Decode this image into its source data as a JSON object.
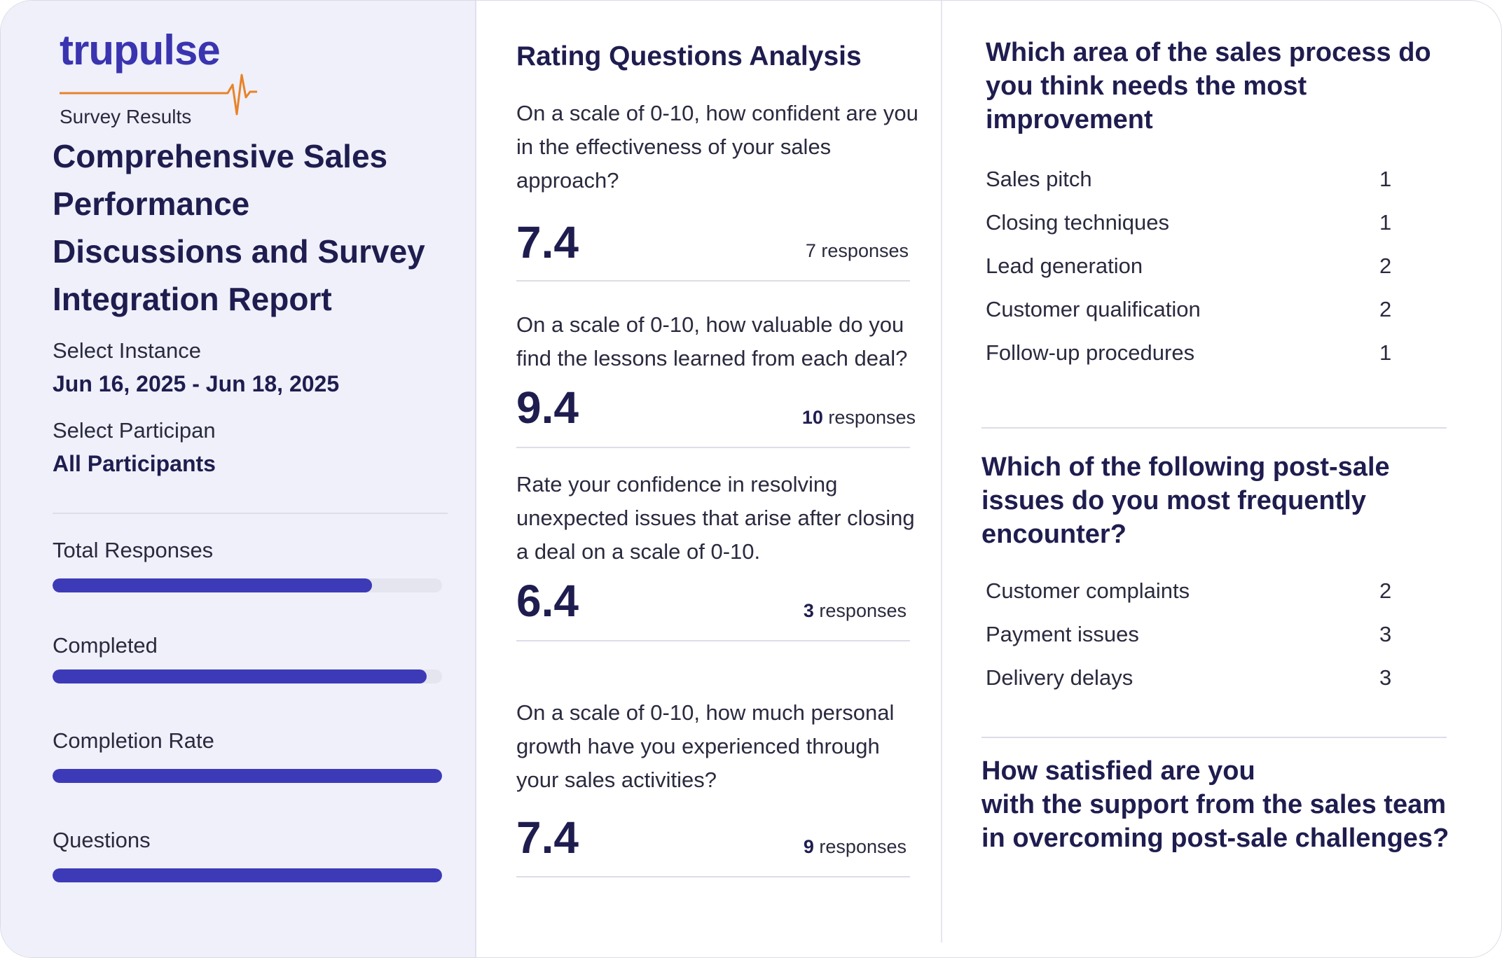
{
  "logo": {
    "text": "trupulse",
    "accent_color": "#e8832a"
  },
  "sidebar": {
    "survey_label": "Survey Results",
    "report_title": "Comprehensive Sales Performance Discussions and Survey Integration Report",
    "instance_label": "Select Instance",
    "instance_value": "Jun 16, 2025 - Jun 18, 2025",
    "participant_label": "Select Participan",
    "participant_value": "All Participants",
    "stats": [
      {
        "label": "Total Responses",
        "progress": 0.82
      },
      {
        "label": "Completed",
        "progress": 0.96
      },
      {
        "label": "Completion Rate",
        "progress": 1.0
      },
      {
        "label": "Questions",
        "progress": 1.0
      }
    ],
    "bar_color": "#3d3ab7"
  },
  "rating": {
    "heading": "Rating Questions Analysis",
    "questions": [
      {
        "text": "On a scale of 0-10, how confident are you in the effectiveness of your sales approach?",
        "score": "7.4",
        "count": "7",
        "count_suffix": "responses"
      },
      {
        "text": "On a scale of 0-10, how valuable do you find the lessons learned from each deal?",
        "score": "9.4",
        "count": "10",
        "count_suffix": "responses"
      },
      {
        "text": "Rate your confidence in resolving unexpected issues that arise after closing a deal on a scale of 0-10.",
        "score": "6.4",
        "count": "3",
        "count_suffix": "responses"
      },
      {
        "text": "On a scale of 0-10, how much personal growth have you experienced through your sales activities?",
        "score": "7.4",
        "count": "9",
        "count_suffix": "responses"
      }
    ]
  },
  "choice": [
    {
      "heading": "Which area of the sales process do you think needs the most improvement",
      "options": [
        {
          "label": "Sales pitch",
          "count": "1"
        },
        {
          "label": "Closing techniques",
          "count": "1"
        },
        {
          "label": "Lead generation",
          "count": "2"
        },
        {
          "label": "Customer qualification",
          "count": "2"
        },
        {
          "label": "Follow-up procedures",
          "count": "1"
        }
      ]
    },
    {
      "heading": "Which of the following post-sale issues do you most frequently encounter?",
      "options": [
        {
          "label": "Customer complaints",
          "count": "2"
        },
        {
          "label": "Payment issues",
          "count": "3"
        },
        {
          "label": "Delivery delays",
          "count": "3"
        }
      ]
    },
    {
      "heading_lines": [
        "How satisfied are you",
        "with the support from the sales team",
        "in overcoming post-sale challenges?"
      ]
    }
  ]
}
